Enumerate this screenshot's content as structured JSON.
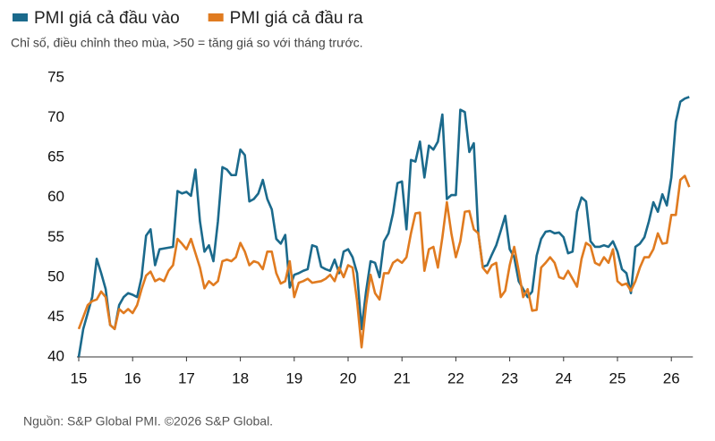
{
  "chart_data": {
    "type": "line",
    "subtitle": "Chỉ số, điều chỉnh theo mùa, >50 = tăng giá so với tháng trước.",
    "source": "Nguồn: S&P Global PMI. ©2026 S&P Global.",
    "categories": [
      "15",
      null,
      null,
      null,
      null,
      null,
      null,
      null,
      null,
      null,
      null,
      null,
      "16",
      null,
      null,
      null,
      null,
      null,
      null,
      null,
      null,
      null,
      null,
      null,
      "17",
      null,
      null,
      null,
      null,
      null,
      null,
      null,
      null,
      null,
      null,
      null,
      "18",
      null,
      null,
      null,
      null,
      null,
      null,
      null,
      null,
      null,
      null,
      null,
      "19",
      null,
      null,
      null,
      null,
      null,
      null,
      null,
      null,
      null,
      null,
      null,
      "20",
      null,
      null,
      null,
      null,
      null,
      null,
      null,
      null,
      null,
      null,
      null,
      "21",
      null,
      null,
      null,
      null,
      null,
      null,
      null,
      null,
      null,
      null,
      null,
      "22",
      null,
      null,
      null,
      null,
      null,
      null,
      null,
      null,
      null,
      null,
      null,
      "23",
      null,
      null,
      null,
      null,
      null,
      null,
      null,
      null,
      null,
      null,
      null,
      "24",
      null,
      null,
      null,
      null,
      null,
      null,
      null,
      null,
      null,
      null,
      null,
      "25",
      null,
      null,
      null,
      null,
      null,
      null,
      null,
      null,
      null,
      null,
      null,
      "26",
      null,
      null,
      null,
      null
    ],
    "series": [
      {
        "name": "PMI giá cả đầu vào",
        "color": "#1b6a8c",
        "values": [
          40,
          43.5,
          45.5,
          47.5,
          52.3,
          50.5,
          48.5,
          44,
          43.5,
          46.5,
          47.5,
          48,
          47.8,
          47.5,
          50,
          55.2,
          56,
          51.5,
          53.5,
          53.6,
          53.7,
          53.8,
          60.8,
          60.5,
          60.7,
          60.2,
          63.5,
          57,
          53.2,
          54,
          52,
          57,
          63.8,
          63.5,
          62.8,
          62.8,
          66,
          65.3,
          59.5,
          59.8,
          60.5,
          62.2,
          59.8,
          58.5,
          54.8,
          54.2,
          55.3,
          48.7,
          50.3,
          50.5,
          50.8,
          51,
          54,
          53.8,
          51.3,
          51,
          50.8,
          52.2,
          50.5,
          53.2,
          53.5,
          52.5,
          50.5,
          43.5,
          48.2,
          52,
          51.8,
          50,
          54.5,
          55.5,
          58,
          61.8,
          62,
          56,
          64.7,
          64.5,
          67,
          62.5,
          66.5,
          66,
          67,
          70.4,
          59.8,
          60.3,
          60.3,
          71,
          70.7,
          65.7,
          66.8,
          55.5,
          51.3,
          51.5,
          52.8,
          54,
          55.8,
          57.7,
          53.5,
          52.5,
          49.5,
          48.5,
          47.5,
          48.2,
          52.7,
          54.8,
          55.7,
          55.8,
          55.5,
          55.6,
          55,
          53,
          53.2,
          58.2,
          60,
          59.5,
          54.5,
          53.8,
          53.8,
          54,
          53.8,
          54.5,
          53.2,
          51,
          50.5,
          48,
          53.8,
          54.2,
          55,
          57,
          59.4,
          58.2,
          60.4,
          59,
          62.5,
          69.5,
          72,
          72.4,
          72.6
        ]
      },
      {
        "name": "PMI giá cả đầu ra",
        "color": "#e07b20",
        "values": [
          43.5,
          45,
          46.5,
          47,
          47.2,
          48.2,
          47.5,
          44,
          43.5,
          46,
          45.5,
          46,
          45.5,
          46.5,
          48.5,
          50.2,
          50.7,
          49.5,
          49.8,
          49.5,
          50.8,
          51.5,
          54.8,
          54.2,
          53.5,
          54.8,
          53,
          51.2,
          48.6,
          49.5,
          49,
          49.5,
          52,
          52.2,
          52,
          52.5,
          54.3,
          53.2,
          51.5,
          52,
          51.8,
          51,
          53.2,
          53.2,
          50.5,
          49.2,
          49.5,
          52,
          47.5,
          49.3,
          49.5,
          49.8,
          49.3,
          49.4,
          49.5,
          49.8,
          50.3,
          49.5,
          51.2,
          50,
          51.5,
          51.2,
          47,
          41.2,
          46.5,
          50.3,
          48,
          47.2,
          50.5,
          50.5,
          51.8,
          52.2,
          51.8,
          52.5,
          55.5,
          58,
          58.1,
          50.8,
          53.5,
          53.8,
          51.2,
          55,
          59.4,
          55.5,
          52.5,
          54.5,
          58.2,
          58.3,
          56,
          55.5,
          51.2,
          50.5,
          51.5,
          51.8,
          47.5,
          48.3,
          51.5,
          53.8,
          50.8,
          47.5,
          48.5,
          45.8,
          45.9,
          51.2,
          51.8,
          52.5,
          51.8,
          50,
          49.8,
          50.8,
          49.8,
          48.8,
          52.3,
          54.3,
          53.9,
          51.8,
          51.5,
          52.5,
          51.8,
          53.5,
          49.5,
          49,
          49.2,
          48.3,
          49.5,
          51.2,
          52.5,
          52.5,
          53.5,
          55.5,
          54.2,
          54.3,
          57.8,
          57.8,
          62.2,
          62.7,
          61.3
        ]
      }
    ],
    "ylim": [
      40,
      75
    ],
    "yticks": [
      40,
      45,
      50,
      55,
      60,
      65,
      70,
      75
    ],
    "grid": false
  }
}
